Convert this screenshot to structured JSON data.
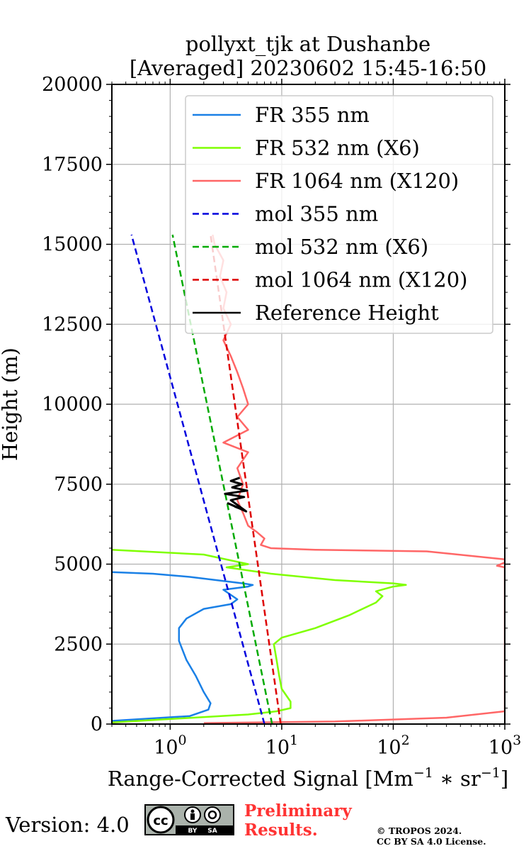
{
  "chart_data": {
    "type": "line",
    "title": "pollyxt_tjk at Dushanbe",
    "subtitle": "[Averaged] 20230602 15:45-16:50",
    "xlabel": "Range-Corrected Signal [Mm",
    "xlabel_sup1": "−1",
    "xlabel_mid": " ∗ sr",
    "xlabel_sup2": "−1",
    "xlabel_end": "]",
    "ylabel": "Height (m)",
    "xscale": "log",
    "xlim": [
      0.3,
      1000
    ],
    "ylim": [
      0,
      20000
    ],
    "xticks": [
      {
        "value": 1,
        "base": "10",
        "exp": "0"
      },
      {
        "value": 10,
        "base": "10",
        "exp": "1"
      },
      {
        "value": 100,
        "base": "10",
        "exp": "2"
      },
      {
        "value": 1000,
        "base": "10",
        "exp": "3"
      }
    ],
    "yticks": [
      0,
      2500,
      5000,
      7500,
      10000,
      12500,
      15000,
      17500,
      20000
    ],
    "grid": true,
    "legend_position": "top-right",
    "series": [
      {
        "name": "FR 355 nm",
        "color": "#1a80e6",
        "dash": "solid",
        "points": [
          [
            0.3,
            100
          ],
          [
            1.5,
            250
          ],
          [
            2.2,
            450
          ],
          [
            2.3,
            650
          ],
          [
            2.0,
            1000
          ],
          [
            1.7,
            1500
          ],
          [
            1.4,
            2000
          ],
          [
            1.2,
            2600
          ],
          [
            1.2,
            3000
          ],
          [
            1.4,
            3300
          ],
          [
            2.0,
            3600
          ],
          [
            3.5,
            3750
          ],
          [
            4.0,
            3900
          ],
          [
            3.0,
            4200
          ],
          [
            5.0,
            4300
          ],
          [
            5.5,
            4350
          ],
          [
            4.5,
            4400
          ],
          [
            1.5,
            4600
          ],
          [
            0.7,
            4700
          ],
          [
            0.3,
            4750
          ]
        ]
      },
      {
        "name": "FR 532 nm (X6)",
        "color": "#7fff00",
        "dash": "solid",
        "points": [
          [
            0.3,
            50
          ],
          [
            5.0,
            300
          ],
          [
            9.0,
            400
          ],
          [
            12.0,
            500
          ],
          [
            12.0,
            700
          ],
          [
            10.0,
            1100
          ],
          [
            9.5,
            1500
          ],
          [
            9.0,
            2000
          ],
          [
            8.5,
            2500
          ],
          [
            10.0,
            2700
          ],
          [
            20.0,
            3000
          ],
          [
            40.0,
            3400
          ],
          [
            70.0,
            3800
          ],
          [
            80.0,
            4000
          ],
          [
            70.0,
            4150
          ],
          [
            100.0,
            4300
          ],
          [
            130.0,
            4350
          ],
          [
            100.0,
            4400
          ],
          [
            30.0,
            4500
          ],
          [
            8.0,
            4700
          ],
          [
            3.2,
            4900
          ],
          [
            5.0,
            5000
          ],
          [
            2.0,
            5300
          ],
          [
            0.3,
            5450
          ]
        ]
      },
      {
        "name": "FR 1064 nm (X120)",
        "color": "#ff6666",
        "dash": "solid",
        "points": [
          [
            2.0,
            30
          ],
          [
            30.0,
            80
          ],
          [
            300.0,
            200
          ],
          [
            1000.0,
            400
          ],
          [
            1000.0,
            4900
          ],
          [
            850.0,
            4950
          ],
          [
            1000.0,
            5050
          ],
          [
            1000.0,
            5150
          ],
          [
            200.0,
            5400
          ],
          [
            20.0,
            5450
          ],
          [
            8.0,
            5500
          ],
          [
            6.5,
            5600
          ],
          [
            7.0,
            5800
          ],
          [
            6.0,
            6000
          ],
          [
            5.0,
            6200
          ],
          [
            4.5,
            6600
          ],
          [
            4.0,
            7000
          ],
          [
            4.5,
            7500
          ],
          [
            4.0,
            8000
          ],
          [
            5.0,
            8500
          ],
          [
            3.0,
            8800
          ],
          [
            5.0,
            9200
          ],
          [
            4.0,
            9600
          ],
          [
            5.0,
            10000
          ],
          [
            4.5,
            10500
          ],
          [
            4.0,
            11000
          ],
          [
            3.5,
            11500
          ],
          [
            3.0,
            12000
          ],
          [
            3.5,
            12500
          ],
          [
            3.0,
            13000
          ],
          [
            3.2,
            13500
          ],
          [
            2.8,
            14000
          ],
          [
            3.0,
            14500
          ],
          [
            2.5,
            15000
          ],
          [
            2.4,
            15300
          ]
        ]
      },
      {
        "name": "mol 355 nm",
        "color": "#0000dd",
        "dash": "dashed",
        "points": [
          [
            7.0,
            0
          ],
          [
            0.45,
            15300
          ]
        ]
      },
      {
        "name": "mol 532 nm (X6)",
        "color": "#00aa00",
        "dash": "dashed",
        "points": [
          [
            8.2,
            0
          ],
          [
            1.05,
            15300
          ]
        ]
      },
      {
        "name": "mol 1064 nm (X120)",
        "color": "#dd0000",
        "dash": "dashed",
        "points": [
          [
            9.8,
            0
          ],
          [
            2.3,
            15300
          ]
        ]
      },
      {
        "name": "Reference Height",
        "color": "#000000",
        "dash": "solid",
        "points": [
          [
            3.8,
            6800
          ],
          [
            4.5,
            6700
          ],
          [
            3.3,
            6900
          ],
          [
            4.8,
            6650
          ],
          [
            3.5,
            7000
          ],
          [
            4.6,
            7100
          ],
          [
            3.1,
            7200
          ],
          [
            4.9,
            7300
          ],
          [
            3.6,
            7400
          ],
          [
            4.4,
            7500
          ],
          [
            3.5,
            7600
          ],
          [
            4.2,
            7700
          ]
        ]
      }
    ]
  },
  "footer": {
    "version": "Version: 4.0",
    "preliminary_line1": "Preliminary",
    "preliminary_line2": "Results.",
    "copyright_line1": "© TROPOS 2024.",
    "copyright_line2": "CC BY SA 4.0 License.",
    "cc_labels": {
      "cc": "cc",
      "by": "BY",
      "sa": "SA"
    }
  }
}
